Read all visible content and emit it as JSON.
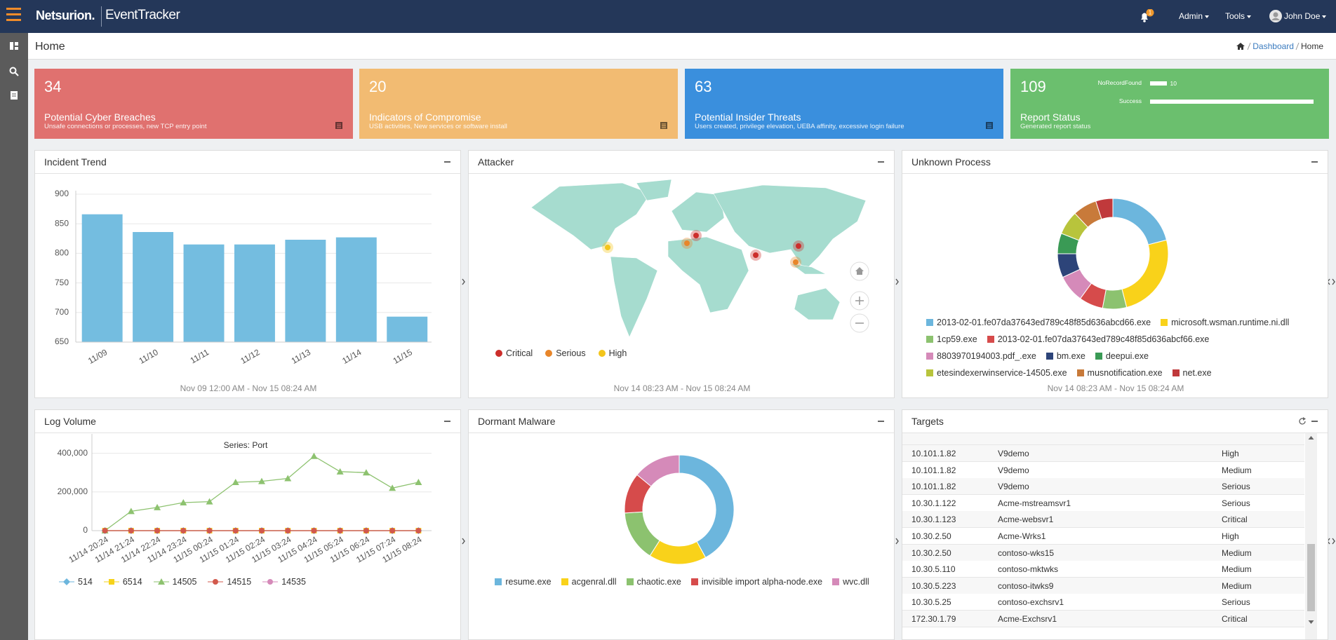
{
  "nav": {
    "brand": "Netsurion.",
    "product": "EventTracker",
    "notifications": "1",
    "menus": [
      "Admin",
      "Tools"
    ],
    "user": "John Doe"
  },
  "page": {
    "title": "Home",
    "breadcrumb": [
      "Dashboard",
      "Home"
    ]
  },
  "cards": [
    {
      "value": 34,
      "title": "Potential Cyber Breaches",
      "subtitle": "Unsafe connections or processes, new TCP entry point",
      "color": "#e0716f"
    },
    {
      "value": 20,
      "title": "Indicators of Compromise",
      "subtitle": "USB activities, New services or software install",
      "color": "#f2bb72"
    },
    {
      "value": 63,
      "title": "Potential Insider Threats",
      "subtitle": "Users created, privilege elevation, UEBA affinity, excessive login failure",
      "color": "#3a8fdd"
    },
    {
      "value": 109,
      "title": "Report Status",
      "subtitle": "Generated report status",
      "color": "#6bbf6e",
      "bars": {
        "categories": [
          "NoRecordFound",
          "Success"
        ],
        "values": [
          10,
          99
        ],
        "color": "#ffffff"
      }
    }
  ],
  "incident_trend": {
    "title": "Incident Trend",
    "type": "bar",
    "categories": [
      "11/09",
      "11/10",
      "11/11",
      "11/12",
      "11/13",
      "11/14",
      "11/15"
    ],
    "values": [
      866,
      836,
      815,
      815,
      823,
      827,
      693
    ],
    "color": "#74bde0",
    "ylim": [
      650,
      900
    ],
    "yticks": [
      650,
      700,
      750,
      800,
      850,
      900
    ],
    "grid": true,
    "footer": "Nov 09 12:00 AM - Nov 15 08:24 AM"
  },
  "attacker": {
    "title": "Attacker",
    "type": "map",
    "legend": [
      {
        "name": "Critical",
        "color": "#cc2e2b"
      },
      {
        "name": "Serious",
        "color": "#e8862a"
      },
      {
        "name": "High",
        "color": "#f3c51b"
      }
    ],
    "footer": "Nov 14 08:23 AM - Nov 15 08:24 AM"
  },
  "unknown_process": {
    "title": "Unknown Process",
    "type": "donut",
    "categories": [
      "2013-02-01.fe07da37643ed789c48f85d636abcd66.exe",
      "microsoft.wsman.runtime.ni.dll",
      "1cp59.exe",
      "2013-02-01.fe07da37643ed789c48f85d636abcf66.exe",
      "8803970194003.pdf_.exe",
      "bm.exe",
      "deepui.exe",
      "etesindexerwinservice-14505.exe",
      "musnotification.exe",
      "net.exe"
    ],
    "values": [
      21,
      25,
      7,
      7,
      8,
      7,
      6,
      7,
      7,
      5
    ],
    "colors": [
      "#6cb6dd",
      "#f9d21a",
      "#8cc26f",
      "#d64b4b",
      "#d58ab9",
      "#2d4479",
      "#3a9a55",
      "#b8c43c",
      "#c87a3a",
      "#c0393b"
    ],
    "footer": "Nov 14 08:23 AM - Nov 15 08:24 AM"
  },
  "log_volume": {
    "title": "Log Volume",
    "type": "line",
    "subtitle": "Series: Port",
    "categories": [
      "11/14 20:24",
      "11/14 21:24",
      "11/14 22:24",
      "11/14 23:24",
      "11/15 00:24",
      "11/15 01:24",
      "11/15 02:24",
      "11/15 03:24",
      "11/15 04:24",
      "11/15 05:24",
      "11/15 06:24",
      "11/15 07:24",
      "11/15 08:24"
    ],
    "series": [
      {
        "name": "514",
        "color": "#6cb6dd",
        "marker": "diamond",
        "values": [
          0,
          0,
          0,
          0,
          0,
          0,
          0,
          0,
          0,
          0,
          0,
          0,
          0
        ]
      },
      {
        "name": "6514",
        "color": "#f6d21a",
        "marker": "square",
        "values": [
          0,
          0,
          0,
          0,
          0,
          0,
          0,
          0,
          0,
          0,
          0,
          0,
          0
        ]
      },
      {
        "name": "14505",
        "color": "#8dc26f",
        "marker": "triangle",
        "values": [
          0,
          100000,
          120000,
          145000,
          150000,
          250000,
          255000,
          270000,
          385000,
          305000,
          300000,
          220000,
          250000
        ]
      },
      {
        "name": "14515",
        "color": "#d2594c",
        "marker": "circle",
        "values": [
          0,
          0,
          0,
          0,
          0,
          0,
          0,
          0,
          0,
          0,
          0,
          0,
          0
        ]
      },
      {
        "name": "14535",
        "color": "#d58ab9",
        "marker": "circle",
        "values": [
          0,
          0,
          0,
          0,
          0,
          0,
          0,
          0,
          0,
          0,
          0,
          0,
          0
        ]
      }
    ],
    "ylim": [
      0,
      500000
    ],
    "yticks": [
      0,
      {
        "value": 200000,
        "label": "200,000"
      },
      {
        "value": 400000,
        "label": "400,000"
      }
    ],
    "grid": true
  },
  "dormant_malware": {
    "title": "Dormant Malware",
    "type": "donut",
    "categories": [
      "resume.exe",
      "acgenral.dll",
      "chaotic.exe",
      "invisible import alpha-node.exe",
      "wvc.dll"
    ],
    "values": [
      42,
      17,
      15,
      12,
      14
    ],
    "colors": [
      "#6cb6dd",
      "#f9d21a",
      "#8cc26f",
      "#d64b4b",
      "#d58ab9"
    ]
  },
  "targets": {
    "title": "Targets",
    "rows": [
      [
        "10.101.1.82",
        "V9demo",
        "High"
      ],
      [
        "10.101.1.82",
        "V9demo",
        "Medium"
      ],
      [
        "10.101.1.82",
        "V9demo",
        "Serious"
      ],
      [
        "10.30.1.122",
        "Acme-mstreamsvr1",
        "Serious"
      ],
      [
        "10.30.1.123",
        "Acme-websvr1",
        "Critical"
      ],
      [
        "10.30.2.50",
        "Acme-Wrks1",
        "High"
      ],
      [
        "10.30.2.50",
        "contoso-wks15",
        "Medium"
      ],
      [
        "10.30.5.110",
        "contoso-mktwks",
        "Medium"
      ],
      [
        "10.30.5.223",
        "contoso-itwks9",
        "Medium"
      ],
      [
        "10.30.5.25",
        "contoso-exchsrv1",
        "Serious"
      ],
      [
        "172.30.1.79",
        "Acme-Exchsrv1",
        "Critical"
      ]
    ]
  }
}
